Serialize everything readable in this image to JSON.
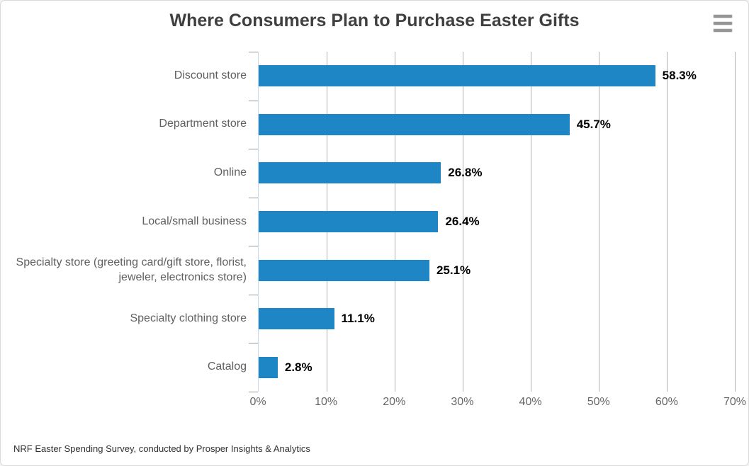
{
  "title": "Where Consumers Plan to Purchase Easter Gifts",
  "header": {
    "menu_icon": "hamburger-icon"
  },
  "chart_data": {
    "type": "bar",
    "orientation": "horizontal",
    "title": "Where Consumers Plan to Purchase Easter Gifts",
    "categories": [
      "Discount store",
      "Department store",
      "Online",
      "Local/small business",
      "Specialty store (greeting card/gift store, florist, jeweler, electronics store)",
      "Specialty clothing store",
      "Catalog"
    ],
    "values": [
      58.3,
      45.7,
      26.8,
      26.4,
      25.1,
      11.1,
      2.8
    ],
    "value_labels": [
      "58.3%",
      "45.7%",
      "26.8%",
      "26.4%",
      "25.1%",
      "11.1%",
      "2.8%"
    ],
    "x_axis": {
      "min": 0,
      "max": 70,
      "tick_values": [
        0,
        10,
        20,
        30,
        40,
        50,
        60,
        70
      ],
      "tick_labels": [
        "0%",
        "10%",
        "20%",
        "30%",
        "40%",
        "50%",
        "60%",
        "70%"
      ]
    },
    "grid": true,
    "legend": false,
    "bar_color": "#1f86c5"
  },
  "footer": {
    "credit": "NRF Easter Spending Survey, conducted by Prosper Insights & Analytics"
  },
  "colors": {
    "bar": "#1f86c5",
    "grid": "#b3b3b3",
    "axis_line": "#ccd6eb",
    "tick": "#999999",
    "category_label": "#606060",
    "axis_label": "#666666",
    "value_label": "#000000",
    "title": "#3f3f3f",
    "footer": "#303030",
    "card_border": "#d9d9d9",
    "page_bg": "#f2f2f2"
  }
}
